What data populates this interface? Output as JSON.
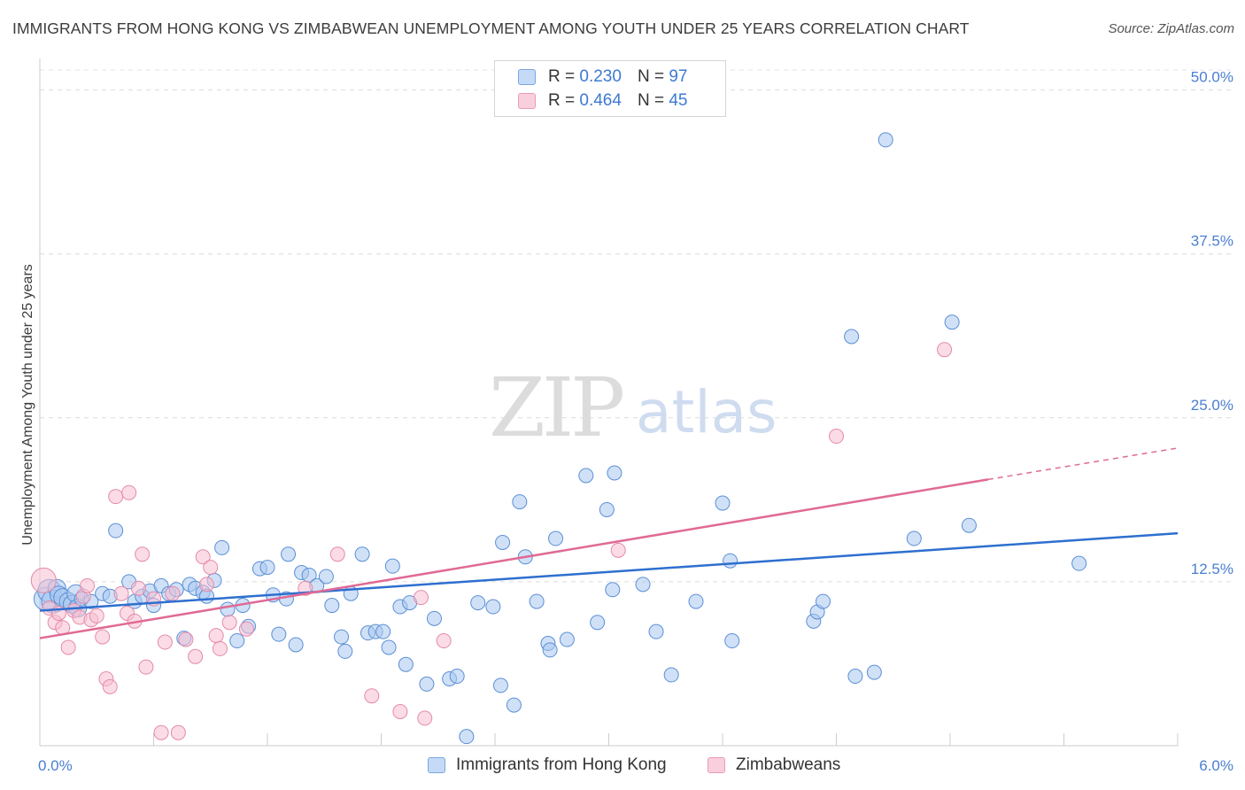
{
  "title": "IMMIGRANTS FROM HONG KONG VS ZIMBABWEAN UNEMPLOYMENT AMONG YOUTH UNDER 25 YEARS CORRELATION CHART",
  "source": "Source: ZipAtlas.com",
  "watermark": {
    "zip": "ZIP",
    "atlas": "atlas"
  },
  "legend": {
    "rows": [
      {
        "r_label": "R =",
        "r_value": "0.230",
        "n_label": "N =",
        "n_value": "97"
      },
      {
        "r_label": "R =",
        "r_value": "0.464",
        "n_label": "N =",
        "n_value": "45"
      }
    ]
  },
  "bottom_legend": {
    "series1": "Immigrants from Hong Kong",
    "series2": "Zimbabweans"
  },
  "chart_data": {
    "type": "scatter",
    "title": "IMMIGRANTS FROM HONG KONG VS ZIMBABWEAN UNEMPLOYMENT AMONG YOUTH UNDER 25 YEARS CORRELATION CHART",
    "xlabel": "",
    "ylabel": "Unemployment Among Youth under 25 years",
    "xlim": [
      0,
      6
    ],
    "ylim": [
      0,
      52
    ],
    "x_tick_labels": [
      "0.0%",
      "6.0%"
    ],
    "y_ticks": [
      12.5,
      25.0,
      37.5,
      50.0
    ],
    "y_tick_labels": [
      "12.5%",
      "25.0%",
      "37.5%",
      "50.0%"
    ],
    "grid": true,
    "legend_position": "top-center",
    "colors": {
      "series1_fill": "#aac8f0",
      "series1_stroke": "#5b8fd6",
      "series1_line": "#2e6fcf",
      "series2_fill": "#f7c0d2",
      "series2_stroke": "#e58aa8",
      "series2_line": "#e06a95"
    },
    "series": [
      {
        "name": "Immigrants from Hong Kong",
        "R": 0.23,
        "N": 97,
        "trend": {
          "x": [
            0.0,
            6.0
          ],
          "y": [
            10.3,
            16.2
          ]
        },
        "points": [
          [
            0.03,
            11.2
          ],
          [
            0.05,
            11.8
          ],
          [
            0.07,
            11.0
          ],
          [
            0.09,
            12.0
          ],
          [
            0.1,
            11.5
          ],
          [
            0.12,
            11.3
          ],
          [
            0.15,
            11.0
          ],
          [
            0.17,
            10.8
          ],
          [
            0.19,
            11.6
          ],
          [
            0.2,
            10.5
          ],
          [
            0.22,
            11.2
          ],
          [
            0.27,
            11.0
          ],
          [
            0.33,
            11.6
          ],
          [
            0.37,
            11.4
          ],
          [
            0.4,
            16.4
          ],
          [
            0.47,
            12.5
          ],
          [
            0.5,
            11.0
          ],
          [
            0.54,
            11.4
          ],
          [
            0.58,
            11.8
          ],
          [
            0.6,
            10.7
          ],
          [
            0.64,
            12.2
          ],
          [
            0.68,
            11.6
          ],
          [
            0.72,
            11.9
          ],
          [
            0.76,
            8.2
          ],
          [
            0.79,
            12.3
          ],
          [
            0.82,
            12.0
          ],
          [
            0.86,
            11.7
          ],
          [
            0.88,
            11.4
          ],
          [
            0.92,
            12.6
          ],
          [
            0.96,
            15.1
          ],
          [
            0.99,
            10.4
          ],
          [
            1.04,
            8.0
          ],
          [
            1.07,
            10.7
          ],
          [
            1.1,
            9.1
          ],
          [
            1.16,
            13.5
          ],
          [
            1.2,
            13.6
          ],
          [
            1.23,
            11.5
          ],
          [
            1.26,
            8.5
          ],
          [
            1.3,
            11.2
          ],
          [
            1.31,
            14.6
          ],
          [
            1.35,
            7.7
          ],
          [
            1.38,
            13.2
          ],
          [
            1.42,
            13.0
          ],
          [
            1.46,
            12.2
          ],
          [
            1.51,
            12.9
          ],
          [
            1.54,
            10.7
          ],
          [
            1.59,
            8.3
          ],
          [
            1.61,
            7.2
          ],
          [
            1.64,
            11.6
          ],
          [
            1.7,
            14.6
          ],
          [
            1.73,
            8.6
          ],
          [
            1.77,
            8.7
          ],
          [
            1.81,
            8.7
          ],
          [
            1.84,
            7.5
          ],
          [
            1.86,
            13.7
          ],
          [
            1.9,
            10.6
          ],
          [
            1.93,
            6.2
          ],
          [
            1.95,
            10.9
          ],
          [
            2.04,
            4.7
          ],
          [
            2.08,
            9.7
          ],
          [
            2.16,
            5.1
          ],
          [
            2.2,
            5.3
          ],
          [
            2.25,
            0.7
          ],
          [
            2.31,
            10.9
          ],
          [
            2.39,
            10.6
          ],
          [
            2.43,
            4.6
          ],
          [
            2.44,
            15.5
          ],
          [
            2.5,
            3.1
          ],
          [
            2.53,
            18.6
          ],
          [
            2.56,
            14.4
          ],
          [
            2.62,
            11.0
          ],
          [
            2.68,
            7.8
          ],
          [
            2.69,
            7.3
          ],
          [
            2.72,
            15.8
          ],
          [
            2.78,
            8.1
          ],
          [
            2.88,
            20.6
          ],
          [
            2.94,
            9.4
          ],
          [
            2.99,
            18.0
          ],
          [
            3.02,
            11.9
          ],
          [
            3.03,
            20.8
          ],
          [
            3.18,
            12.3
          ],
          [
            3.25,
            8.7
          ],
          [
            3.33,
            5.4
          ],
          [
            3.46,
            11.0
          ],
          [
            3.6,
            18.5
          ],
          [
            3.64,
            14.1
          ],
          [
            3.65,
            8.0
          ],
          [
            4.08,
            9.5
          ],
          [
            4.1,
            10.2
          ],
          [
            4.13,
            11.0
          ],
          [
            4.28,
            31.2
          ],
          [
            4.3,
            5.3
          ],
          [
            4.4,
            5.6
          ],
          [
            4.61,
            15.8
          ],
          [
            4.81,
            32.3
          ],
          [
            4.9,
            16.8
          ],
          [
            5.48,
            13.9
          ],
          [
            4.46,
            46.2
          ]
        ]
      },
      {
        "name": "Zimbabweans",
        "R": 0.464,
        "N": 45,
        "trend": {
          "x": [
            0.0,
            5.0
          ],
          "y": [
            8.2,
            20.3
          ]
        },
        "trend_dashed": {
          "x": [
            5.0,
            6.0
          ],
          "y": [
            20.3,
            22.7
          ]
        },
        "points": [
          [
            0.02,
            12.6
          ],
          [
            0.05,
            10.5
          ],
          [
            0.08,
            9.4
          ],
          [
            0.1,
            10.1
          ],
          [
            0.12,
            9.0
          ],
          [
            0.15,
            7.5
          ],
          [
            0.18,
            10.3
          ],
          [
            0.21,
            9.8
          ],
          [
            0.23,
            11.4
          ],
          [
            0.25,
            12.2
          ],
          [
            0.27,
            9.6
          ],
          [
            0.3,
            9.9
          ],
          [
            0.33,
            8.3
          ],
          [
            0.35,
            5.1
          ],
          [
            0.37,
            4.5
          ],
          [
            0.4,
            19.0
          ],
          [
            0.43,
            11.6
          ],
          [
            0.46,
            10.1
          ],
          [
            0.47,
            19.3
          ],
          [
            0.5,
            9.5
          ],
          [
            0.52,
            12.0
          ],
          [
            0.54,
            14.6
          ],
          [
            0.56,
            6.0
          ],
          [
            0.6,
            11.2
          ],
          [
            0.64,
            1.0
          ],
          [
            0.66,
            7.9
          ],
          [
            0.7,
            11.6
          ],
          [
            0.73,
            1.0
          ],
          [
            0.77,
            8.1
          ],
          [
            0.82,
            6.8
          ],
          [
            0.86,
            14.4
          ],
          [
            0.88,
            12.3
          ],
          [
            0.9,
            13.6
          ],
          [
            0.93,
            8.4
          ],
          [
            0.95,
            7.4
          ],
          [
            1.0,
            9.4
          ],
          [
            1.09,
            8.9
          ],
          [
            1.4,
            12.0
          ],
          [
            1.57,
            14.6
          ],
          [
            1.75,
            3.8
          ],
          [
            1.9,
            2.6
          ],
          [
            2.01,
            11.3
          ],
          [
            2.03,
            2.1
          ],
          [
            2.13,
            8.0
          ],
          [
            3.05,
            14.9
          ],
          [
            4.2,
            23.6
          ],
          [
            4.77,
            30.2
          ]
        ]
      }
    ]
  }
}
